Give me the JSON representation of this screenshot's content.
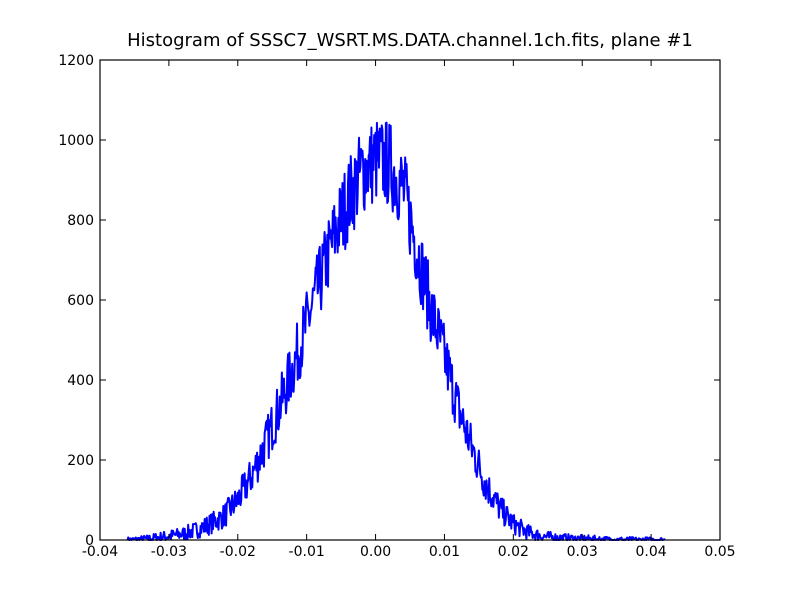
{
  "chart_data": {
    "type": "line",
    "title": "Histogram of SSSC7_WSRT.MS.DATA.channel.1ch.fits, plane #1",
    "xlabel": "",
    "ylabel": "",
    "xlim": [
      -0.04,
      0.05
    ],
    "ylim": [
      0,
      1200
    ],
    "xticks": [
      "-0.04",
      "-0.03",
      "-0.02",
      "-0.01",
      "0.00",
      "0.01",
      "0.02",
      "0.03",
      "0.04",
      "0.05"
    ],
    "yticks": [
      "0",
      "200",
      "400",
      "600",
      "800",
      "1000",
      "1200"
    ],
    "grid": false,
    "series": [
      {
        "color": "#0000ff",
        "x": [
          -0.036,
          -0.033,
          -0.03,
          -0.028,
          -0.026,
          -0.024,
          -0.022,
          -0.02,
          -0.018,
          -0.016,
          -0.014,
          -0.012,
          -0.01,
          -0.008,
          -0.006,
          -0.004,
          -0.002,
          0.0,
          0.002,
          0.004,
          0.006,
          0.008,
          0.01,
          0.012,
          0.014,
          0.016,
          0.018,
          0.02,
          0.022,
          0.024,
          0.026,
          0.028,
          0.03,
          0.034,
          0.038,
          0.042
        ],
        "y": [
          0,
          3,
          10,
          15,
          25,
          40,
          60,
          100,
          160,
          240,
          330,
          430,
          540,
          650,
          760,
          850,
          920,
          950,
          940,
          880,
          730,
          580,
          460,
          330,
          230,
          140,
          80,
          40,
          20,
          10,
          6,
          4,
          3,
          1,
          0,
          0
        ]
      }
    ]
  }
}
